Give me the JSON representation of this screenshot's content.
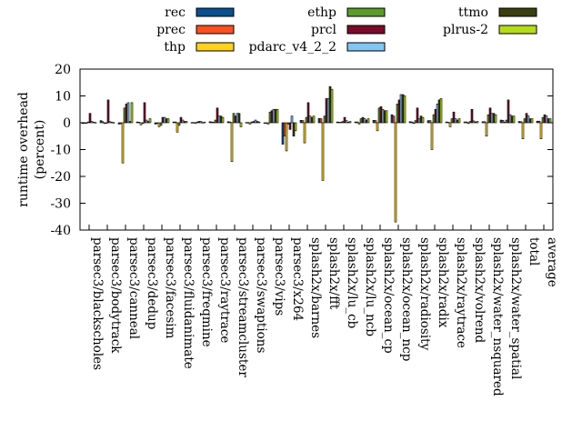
{
  "chart_data": {
    "type": "bar",
    "title": "",
    "xlabel": "",
    "ylabel": "runtime overhead (percent)",
    "ylabel_lines": [
      "runtime overhead",
      "(percent)"
    ],
    "ylim": [
      -40,
      20
    ],
    "yticks": [
      20,
      10,
      0,
      -10,
      -20,
      -30,
      -40
    ],
    "grid": false,
    "legend_position": "top-outside",
    "categories": [
      "parsec3/blackscholes",
      "parsec3/bodytrack",
      "parsec3/canneal",
      "parsec3/dedup",
      "parsec3/facesim",
      "parsec3/fluidanimate",
      "parsec3/freqmine",
      "parsec3/raytrace",
      "parsec3/streamcluster",
      "parsec3/swaptions",
      "parsec3/vips",
      "parsec3/x264",
      "splash2x/barnes",
      "splash2x/fft",
      "splash2x/lu_cb",
      "splash2x/lu_ncb",
      "splash2x/ocean_cp",
      "splash2x/ocean_ncp",
      "splash2x/radiosity",
      "splash2x/radix",
      "splash2x/raytrace",
      "splash2x/volrend",
      "splash2x/water_nsquared",
      "splash2x/water_spatial",
      "total",
      "average"
    ],
    "series": [
      {
        "name": "rec",
        "color": "#0b4f8e",
        "values": [
          -0.3,
          0.8,
          -0.5,
          0.3,
          -0.5,
          0.3,
          0.1,
          0.4,
          0.4,
          0.1,
          0.0,
          -8.0,
          0.9,
          1.6,
          0.3,
          0.3,
          0.9,
          3.0,
          0.4,
          0.8,
          0.3,
          0.3,
          0.4,
          1.0,
          0.5,
          0.6
        ]
      },
      {
        "name": "prec",
        "color": "#ff4f1f",
        "values": [
          -0.2,
          0.4,
          -0.4,
          0.2,
          -0.3,
          0.3,
          0.1,
          0.3,
          0.3,
          0.1,
          0.0,
          -5.0,
          0.8,
          1.5,
          0.2,
          0.3,
          0.8,
          2.5,
          0.3,
          0.8,
          0.2,
          0.3,
          0.4,
          0.9,
          0.4,
          0.6
        ]
      },
      {
        "name": "thp",
        "color": "#ffd21f",
        "values": [
          0.0,
          -0.3,
          -15.0,
          -0.8,
          -1.5,
          -3.5,
          -0.2,
          0.2,
          -14.5,
          -0.5,
          -0.5,
          -10.5,
          -7.5,
          -21.5,
          0.2,
          -0.5,
          -3.0,
          -37.0,
          -0.3,
          -10.0,
          -1.5,
          -0.3,
          -5.0,
          0.2,
          -6.0,
          -6.0
        ]
      },
      {
        "name": "ethp",
        "color": "#5a9b29",
        "values": [
          0.3,
          -0.1,
          5.5,
          -0.3,
          -1.0,
          -1.0,
          0.3,
          1.0,
          3.5,
          0.3,
          4.0,
          -0.5,
          2.0,
          2.5,
          0.5,
          1.5,
          5.5,
          7.0,
          0.8,
          3.0,
          1.5,
          0.5,
          3.0,
          1.0,
          1.5,
          2.0
        ]
      },
      {
        "name": "prcl",
        "color": "#7b0a2a",
        "values": [
          3.5,
          8.5,
          7.0,
          7.5,
          2.0,
          2.0,
          0.5,
          5.5,
          2.5,
          0.5,
          4.5,
          -2.5,
          7.5,
          9.0,
          2.0,
          2.0,
          6.0,
          8.5,
          5.5,
          5.0,
          4.0,
          5.0,
          5.5,
          8.5,
          3.5,
          3.0
        ]
      },
      {
        "name": "pdarc_v4_2_2",
        "color": "#83c4f2",
        "values": [
          0.5,
          0.4,
          7.5,
          1.0,
          2.0,
          1.0,
          0.5,
          2.5,
          3.5,
          1.0,
          5.0,
          2.5,
          2.5,
          9.0,
          0.8,
          1.5,
          5.0,
          10.5,
          1.5,
          7.0,
          1.5,
          0.7,
          3.5,
          3.0,
          2.5,
          2.5
        ]
      },
      {
        "name": "ttmo",
        "color": "#3a3f0f",
        "values": [
          0.2,
          0.2,
          0.5,
          0.5,
          1.5,
          0.5,
          0.1,
          2.5,
          3.5,
          0.5,
          5.0,
          -5.0,
          2.0,
          13.5,
          0.2,
          1.0,
          4.5,
          10.5,
          2.5,
          8.5,
          1.0,
          0.3,
          3.5,
          2.5,
          1.5,
          1.5
        ]
      },
      {
        "name": "plrus-2",
        "color": "#b6dc16",
        "values": [
          0.1,
          0.1,
          7.5,
          1.5,
          1.5,
          0.5,
          0.2,
          2.0,
          -1.5,
          0.3,
          5.0,
          -3.0,
          2.5,
          12.5,
          0.5,
          1.5,
          4.5,
          10.0,
          2.0,
          9.0,
          1.5,
          0.5,
          3.0,
          2.5,
          1.5,
          1.5
        ]
      }
    ]
  }
}
